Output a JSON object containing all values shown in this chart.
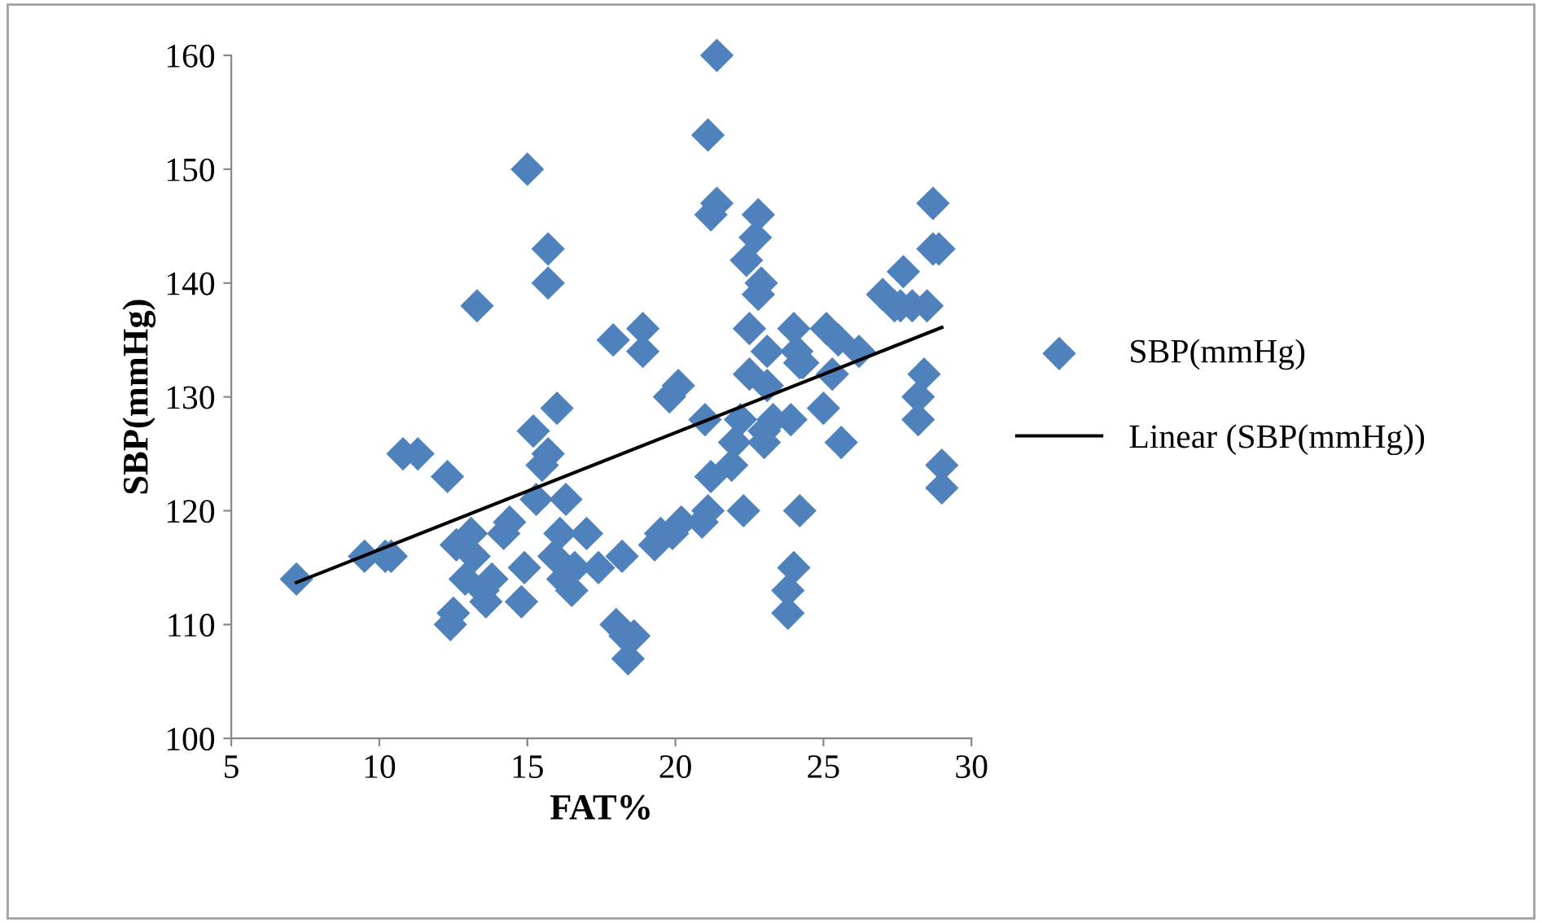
{
  "chart_data": {
    "type": "scatter",
    "xlabel": "FAT%",
    "ylabel": "SBP(mmHg)",
    "xlim": [
      5,
      30
    ],
    "xticks": [
      5,
      10,
      15,
      20,
      25,
      30
    ],
    "ylim": [
      100,
      160
    ],
    "yticks": [
      100,
      110,
      120,
      130,
      140,
      150,
      160
    ],
    "grid": false,
    "legend": "right",
    "marker": "diamond",
    "series": [
      {
        "name": "SBP(mmHg)",
        "color": "#4f81bd",
        "x": [
          7.2,
          9.5,
          10.2,
          10.4,
          10.8,
          11.3,
          12.3,
          12.4,
          12.5,
          12.6,
          12.9,
          13.1,
          13.2,
          13.3,
          13.5,
          13.6,
          13.8,
          14.2,
          14.4,
          14.8,
          14.9,
          15.0,
          15.2,
          15.3,
          15.5,
          15.7,
          15.7,
          15.7,
          15.9,
          16.0,
          16.1,
          16.2,
          16.3,
          16.5,
          16.6,
          17.0,
          17.4,
          17.9,
          18.0,
          18.2,
          18.3,
          18.4,
          18.6,
          18.9,
          18.9,
          19.3,
          19.5,
          19.8,
          19.9,
          20.1,
          20.2,
          20.9,
          21.0,
          21.1,
          21.1,
          21.2,
          21.2,
          21.4,
          21.4,
          21.9,
          22.0,
          22.2,
          22.3,
          22.4,
          22.5,
          22.5,
          22.7,
          22.8,
          22.8,
          22.9,
          23.0,
          23.0,
          23.1,
          23.1,
          23.3,
          23.8,
          23.8,
          23.9,
          24.0,
          24.0,
          24.1,
          24.2,
          24.2,
          24.3,
          25.0,
          25.1,
          25.3,
          25.5,
          25.6,
          26.2,
          27.0,
          27.4,
          27.6,
          27.7,
          28.0,
          28.2,
          28.2,
          28.4,
          28.5,
          28.7,
          28.7,
          28.9,
          29.0,
          29.0
        ],
        "values": [
          114,
          116,
          116,
          116,
          125,
          125,
          123,
          110,
          111,
          117,
          114,
          118,
          116,
          138,
          113,
          112,
          114,
          118,
          119,
          112,
          115,
          150,
          127,
          121,
          124,
          125,
          140,
          143,
          116,
          129,
          118,
          114,
          121,
          113,
          115,
          118,
          115,
          135,
          110,
          116,
          109,
          107,
          109,
          136,
          134,
          117,
          118,
          130,
          118,
          131,
          119,
          119,
          128,
          153,
          120,
          123,
          146,
          147,
          160,
          124,
          126,
          128,
          120,
          142,
          132,
          136,
          144,
          146,
          139,
          140,
          126,
          127,
          131,
          134,
          128,
          113,
          111,
          128,
          115,
          136,
          134,
          133,
          120,
          133,
          129,
          136,
          132,
          135,
          126,
          134,
          139,
          138,
          138,
          141,
          138,
          128,
          130,
          132,
          138,
          147,
          143,
          143,
          124,
          122
        ]
      },
      {
        "name": "Linear (SBP(mmHg))",
        "type": "line",
        "color": "#000000",
        "marker": "none",
        "line_style": "solid",
        "x": [
          7.2,
          29.0
        ],
        "values": [
          113.7,
          136.1
        ]
      }
    ]
  }
}
